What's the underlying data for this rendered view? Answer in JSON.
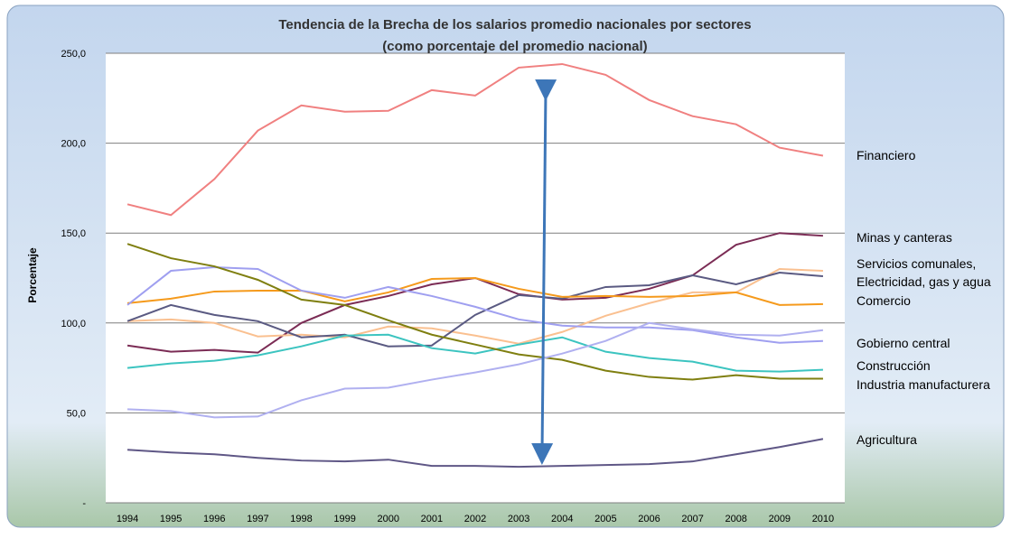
{
  "chart_data": {
    "type": "line",
    "title": [
      "Tendencia de la Brecha de los salarios promedio nacionales por sectores",
      "(como porcentaje del promedio nacional)"
    ],
    "y_label": "Porcentaje",
    "x": [
      1994,
      1995,
      1996,
      1997,
      1998,
      1999,
      2000,
      2001,
      2002,
      2003,
      2004,
      2005,
      2006,
      2007,
      2008,
      2009,
      2010
    ],
    "ylim": [
      0,
      250
    ],
    "yticks": [
      {
        "value": 0,
        "label": "-"
      },
      {
        "value": 50,
        "label": "50,0"
      },
      {
        "value": 100,
        "label": "100,0"
      },
      {
        "value": 150,
        "label": "150,0"
      },
      {
        "value": 200,
        "label": "200,0"
      },
      {
        "value": 250,
        "label": "250,0"
      }
    ],
    "grid": true,
    "series": [
      {
        "name": "Financiero",
        "color": "#f08080",
        "values": [
          166,
          160,
          180,
          207,
          221,
          217.5,
          218,
          229.5,
          226.5,
          242,
          244,
          238,
          224,
          215,
          210.5,
          197.5,
          193
        ]
      },
      {
        "name": "Minas y canteras",
        "color": "#7b2c55",
        "values": [
          87.5,
          84,
          85,
          83.5,
          100,
          110,
          115,
          121.5,
          125,
          116,
          113,
          114,
          119,
          126.5,
          143.5,
          150,
          148.5
        ]
      },
      {
        "name": "Servicios comunales,",
        "color": "#fac090",
        "values": [
          101,
          102,
          100,
          92.5,
          93.5,
          92,
          98,
          97,
          93,
          88.5,
          95,
          104,
          111,
          117,
          117,
          130,
          129
        ]
      },
      {
        "name": "Electricidad, gas y agua",
        "color": "#5a5a82",
        "values": [
          101,
          110,
          104.5,
          101,
          92,
          93.5,
          87,
          87.5,
          104.5,
          115.5,
          113.5,
          120,
          121,
          126.5,
          121.5,
          128,
          126
        ]
      },
      {
        "name": "Comercio",
        "color": "#f59a1c",
        "values": [
          111,
          113.5,
          117.5,
          118,
          118,
          112,
          117,
          124.5,
          125,
          119,
          114.5,
          115,
          114.5,
          115,
          117,
          110,
          110.5
        ]
      },
      {
        "name": "Gobierno central",
        "color": "#9f9ff0",
        "values": [
          110,
          129,
          131,
          130,
          118,
          114,
          120,
          115,
          109,
          102,
          98.5,
          97.5,
          97.5,
          96,
          92,
          89,
          90
        ]
      },
      {
        "name": "Construcción",
        "color": "#3cc4c0",
        "values": [
          75,
          77.5,
          79,
          82,
          87,
          93,
          93.5,
          86,
          83,
          88,
          92,
          84,
          80.5,
          78.5,
          73.5,
          73,
          74
        ]
      },
      {
        "name": "Industria manufacturera",
        "color": "#7f7f10",
        "values": [
          144,
          136,
          131.5,
          124,
          113,
          110,
          101.5,
          93.5,
          88,
          82.5,
          79.5,
          73.5,
          70,
          68.5,
          71,
          69,
          69
        ]
      },
      {
        "name": "Agricultura",
        "color": "#5f5786",
        "values": [
          29.5,
          28,
          27,
          25,
          23.5,
          23,
          24,
          20.5,
          20.5,
          20,
          20.5,
          21,
          21.5,
          23,
          27,
          31,
          35.5
        ]
      },
      {
        "color": "#b0b0f0",
        "values": [
          52,
          51,
          47.5,
          48,
          57,
          63.5,
          64,
          68.5,
          72.5,
          77,
          83,
          90,
          100,
          96.5,
          93.5,
          93,
          96
        ]
      }
    ]
  }
}
